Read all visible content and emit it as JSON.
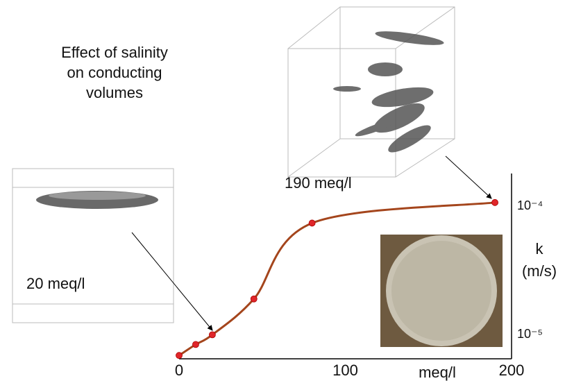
{
  "chart_data": {
    "type": "line",
    "title": [
      "Effect of salinity",
      "on conducting",
      "volumes"
    ],
    "annotations": [
      "190 meq/l",
      "20 meq/l"
    ],
    "xlabel": "meq/l",
    "ylabel": [
      "k",
      "(m/s)"
    ],
    "x": [
      0,
      10,
      20,
      45,
      80,
      190
    ],
    "series": [
      {
        "color": "#a4451c",
        "values": [
          6.9e-06,
          8.4e-06,
          1e-05,
          1.9e-05,
          7.4e-05,
          0.000107
        ]
      }
    ],
    "marker_color": "#e0262a",
    "xlim": [
      0,
      200
    ],
    "xticks": [
      0,
      100,
      200
    ],
    "ylim": [
      6.5e-06,
      0.00018
    ],
    "log_y": true,
    "yticks": [
      {
        "value": 1e-05,
        "label": "10⁻⁵"
      },
      {
        "value": 0.0001,
        "label": "10⁻⁴"
      }
    ]
  }
}
